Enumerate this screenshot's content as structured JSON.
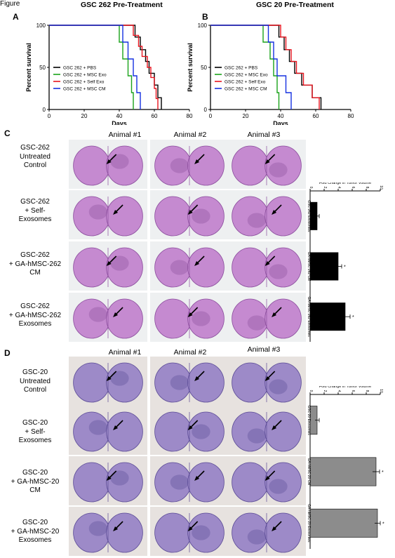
{
  "figure_label": "Figure",
  "panels": {
    "A": {
      "letter": "A",
      "title": "GSC 262 Pre-Treatment"
    },
    "B": {
      "letter": "B",
      "title": "GSC 20 Pre-Treatment"
    },
    "C": {
      "letter": "C"
    },
    "D": {
      "letter": "D"
    }
  },
  "survival_axes": {
    "ylabel": "Percent survival",
    "xlabel": "Days",
    "xticks": [
      "0",
      "20",
      "40",
      "60",
      "80"
    ],
    "yticks": [
      "0",
      "50",
      "100"
    ]
  },
  "colors": {
    "pbs": "#000000",
    "msc_exo": "#1aa31a",
    "self_exo": "#e8141e",
    "msc_cm": "#1530e0",
    "bar_c": "#000000",
    "bar_d": "#8c8c8c",
    "brain_c": "#c58ad0",
    "brain_d": "#9d8ac8"
  },
  "column_headers_C": [
    "Animal #1",
    "Animal #2",
    "Animal #3"
  ],
  "column_headers_D": [
    "Animal #1",
    "Animal #2",
    "Animal #3"
  ],
  "row_labels_C": [
    [
      "GSC-262",
      "Untreated",
      "Control"
    ],
    [
      "GSC-262",
      "+ Self-",
      "Exosomes"
    ],
    [
      "GSC-262",
      "+ GA-hMSC-262",
      "CM"
    ],
    [
      "GSC-262",
      "+ GA-hMSC-262",
      "Exosomes"
    ]
  ],
  "row_labels_D": [
    [
      "GSC-20",
      "Untreated",
      "Control"
    ],
    [
      "GSC-20",
      "+ Self-",
      "Exosomes"
    ],
    [
      "GSC-20",
      "+ GA-hMSC-20",
      "CM"
    ],
    [
      "GSC-20",
      "+ GA-hMSC-20",
      "Exosomes"
    ]
  ],
  "chart_data": [
    {
      "type": "line",
      "panel": "A",
      "title": "GSC 262 Pre-Treatment",
      "xlabel": "Days",
      "ylabel": "Percent survival",
      "xlim": [
        0,
        80
      ],
      "ylim": [
        0,
        100
      ],
      "series": [
        {
          "name": "GSC 262 + PBS",
          "color": "#000000",
          "steps": [
            [
              0,
              100
            ],
            [
              49,
              100
            ],
            [
              49,
              86
            ],
            [
              52,
              86
            ],
            [
              52,
              71
            ],
            [
              55,
              71
            ],
            [
              55,
              57
            ],
            [
              57,
              57
            ],
            [
              57,
              43
            ],
            [
              60,
              43
            ],
            [
              60,
              29
            ],
            [
              62,
              29
            ],
            [
              62,
              14
            ],
            [
              64,
              14
            ],
            [
              64,
              0
            ]
          ]
        },
        {
          "name": "GSC 262 + MSC Exo",
          "color": "#1aa31a",
          "steps": [
            [
              0,
              100
            ],
            [
              40,
              100
            ],
            [
              40,
              80
            ],
            [
              42,
              80
            ],
            [
              42,
              60
            ],
            [
              45,
              60
            ],
            [
              45,
              40
            ],
            [
              47,
              40
            ],
            [
              47,
              20
            ],
            [
              48,
              20
            ],
            [
              48,
              0
            ]
          ]
        },
        {
          "name": "GSC 262 + Self Exo",
          "color": "#e8141e",
          "steps": [
            [
              0,
              100
            ],
            [
              48,
              100
            ],
            [
              48,
              88
            ],
            [
              51,
              88
            ],
            [
              51,
              75
            ],
            [
              53,
              75
            ],
            [
              53,
              63
            ],
            [
              56,
              63
            ],
            [
              56,
              50
            ],
            [
              58,
              50
            ],
            [
              58,
              38
            ],
            [
              60,
              38
            ],
            [
              60,
              25
            ],
            [
              61,
              25
            ],
            [
              61,
              13
            ],
            [
              62,
              13
            ],
            [
              62,
              0
            ]
          ]
        },
        {
          "name": "GSC 262 + MSC CM",
          "color": "#1530e0",
          "steps": [
            [
              0,
              100
            ],
            [
              42,
              100
            ],
            [
              42,
              80
            ],
            [
              45,
              80
            ],
            [
              45,
              60
            ],
            [
              48,
              60
            ],
            [
              48,
              40
            ],
            [
              50,
              40
            ],
            [
              50,
              20
            ],
            [
              52,
              20
            ],
            [
              52,
              0
            ]
          ]
        }
      ]
    },
    {
      "type": "line",
      "panel": "B",
      "title": "GSC 20 Pre-Treatment",
      "xlabel": "Days",
      "ylabel": "Percent survival",
      "xlim": [
        0,
        80
      ],
      "ylim": [
        0,
        100
      ],
      "series": [
        {
          "name": "GSC 262 + PBS",
          "color": "#000000",
          "steps": [
            [
              0,
              100
            ],
            [
              39,
              100
            ],
            [
              39,
              86
            ],
            [
              42,
              86
            ],
            [
              42,
              71
            ],
            [
              45,
              71
            ],
            [
              45,
              57
            ],
            [
              48,
              57
            ],
            [
              48,
              43
            ],
            [
              52,
              43
            ],
            [
              52,
              29
            ],
            [
              58,
              29
            ],
            [
              58,
              14
            ],
            [
              63,
              14
            ],
            [
              63,
              0
            ]
          ]
        },
        {
          "name": "GSC 262 + MSC Exo",
          "color": "#1aa31a",
          "steps": [
            [
              0,
              100
            ],
            [
              30,
              100
            ],
            [
              30,
              80
            ],
            [
              34,
              80
            ],
            [
              34,
              60
            ],
            [
              36,
              60
            ],
            [
              36,
              40
            ],
            [
              38,
              40
            ],
            [
              38,
              20
            ],
            [
              39,
              20
            ],
            [
              39,
              0
            ]
          ]
        },
        {
          "name": "GSC 262 + Self Exo",
          "color": "#e8141e",
          "steps": [
            [
              0,
              100
            ],
            [
              40,
              100
            ],
            [
              40,
              86
            ],
            [
              43,
              86
            ],
            [
              43,
              71
            ],
            [
              46,
              71
            ],
            [
              46,
              57
            ],
            [
              49,
              57
            ],
            [
              49,
              43
            ],
            [
              53,
              43
            ],
            [
              53,
              29
            ],
            [
              58,
              29
            ],
            [
              58,
              14
            ],
            [
              62,
              14
            ],
            [
              62,
              0
            ]
          ]
        },
        {
          "name": "GSC 262 + MSC CM",
          "color": "#1530e0",
          "steps": [
            [
              0,
              100
            ],
            [
              33,
              100
            ],
            [
              33,
              80
            ],
            [
              36,
              80
            ],
            [
              36,
              60
            ],
            [
              38,
              60
            ],
            [
              38,
              40
            ],
            [
              43,
              40
            ],
            [
              43,
              20
            ],
            [
              46,
              20
            ],
            [
              46,
              0
            ]
          ]
        }
      ]
    },
    {
      "type": "bar",
      "panel": "C",
      "orientation": "horizontal-rotated",
      "ylabel": "Fold Change in Tumor Volume",
      "xticks": [
        "0",
        "2",
        "4",
        "6",
        "8",
        "10"
      ],
      "xlim": [
        0,
        10
      ],
      "categories": [
        "GSC 262 Exosomes",
        "GA-hMSC 262 CM",
        "GA-hMSC 262 Exosomes"
      ],
      "values": [
        1.0,
        4.0,
        5.0
      ],
      "errors": [
        0.3,
        0.5,
        0.7
      ],
      "significance": [
        "",
        "*",
        "*"
      ]
    },
    {
      "type": "bar",
      "panel": "D",
      "orientation": "horizontal-rotated",
      "ylabel": "Fold Change in Tumor Volume",
      "xticks": [
        "0",
        "2",
        "4",
        "6",
        "8",
        "10"
      ],
      "xlim": [
        0,
        10
      ],
      "categories": [
        "GSC 20 Exosomes",
        "GA-hMSC 20 CM",
        "GA-hMSC 20 Exosomes"
      ],
      "values": [
        1.0,
        9.4,
        9.6
      ],
      "errors": [
        0.3,
        0.5,
        0.4
      ],
      "significance": [
        "",
        "*",
        "*"
      ]
    }
  ]
}
